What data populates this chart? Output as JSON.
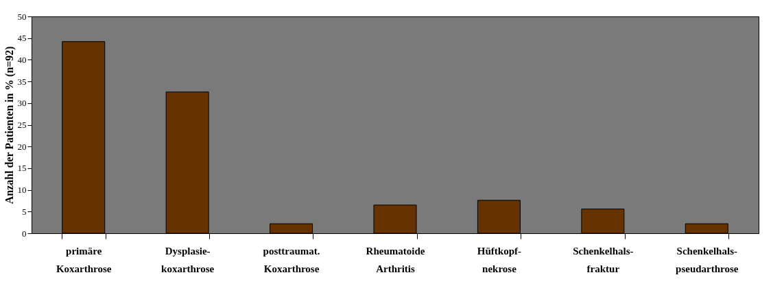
{
  "chart_data": {
    "type": "bar",
    "ylabel": "Anzahl der Patienten in % (n=92)",
    "categories": [
      "primäre\nKoxarthrose",
      "Dysplasie-\nkoxarthrose",
      "posttraumat.\nKoxarthrose",
      "Rheumatoide\nArthritis",
      "Hüftkopf-\nnekrose",
      "Schenkelhals-\nfraktur",
      "Schenkelhals-\npseudarthrose"
    ],
    "values": [
      44.2,
      32.6,
      2.2,
      6.5,
      7.6,
      5.6,
      2.2
    ],
    "color": "#663300",
    "ylim": [
      0,
      50
    ],
    "yticks": [
      0,
      5,
      10,
      15,
      20,
      25,
      30,
      35,
      40,
      45,
      50
    ],
    "grid": false
  }
}
